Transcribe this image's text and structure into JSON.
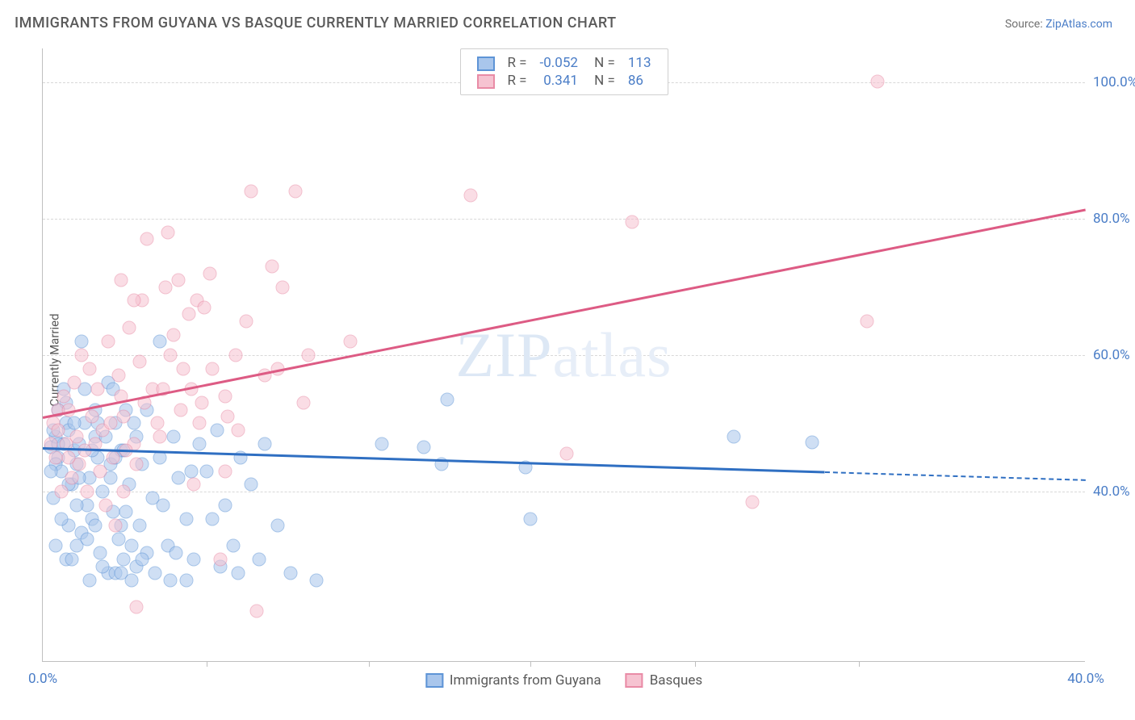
{
  "title": "IMMIGRANTS FROM GUYANA VS BASQUE CURRENTLY MARRIED CORRELATION CHART",
  "source_prefix": "Source: ",
  "source_link": "ZipAtlas.com",
  "ylabel": "Currently Married",
  "watermark": "ZIPatlas",
  "chart": {
    "type": "scatter",
    "xlim": [
      0,
      40
    ],
    "ylim": [
      15,
      105
    ],
    "x_ticks": [
      0,
      40
    ],
    "x_tick_labels": [
      "0.0%",
      "40.0%"
    ],
    "x_minor_ticks": [
      6.3,
      12.5,
      18.7,
      25,
      31.3
    ],
    "y_ticks": [
      40,
      60,
      80,
      100
    ],
    "y_tick_labels": [
      "40.0%",
      "60.0%",
      "80.0%",
      "100.0%"
    ],
    "grid_color": "#d8d8d8",
    "axis_color": "#bfbfbf",
    "background_color": "#ffffff",
    "marker_radius": 8.5,
    "marker_opacity": 0.55,
    "series": [
      {
        "name": "Immigrants from Guyana",
        "fill_color": "#a9c6ec",
        "stroke_color": "#5e94d6",
        "trend_color": "#2f6fc2",
        "R": "-0.052",
        "N": "113",
        "trend": {
          "x1": 0,
          "y1": 46.5,
          "x2": 30,
          "y2": 43.0,
          "ext_to_x": 40
        },
        "points": [
          [
            0.3,
            46.5
          ],
          [
            0.5,
            48
          ],
          [
            0.6,
            45
          ],
          [
            0.8,
            47
          ],
          [
            0.9,
            50
          ],
          [
            0.5,
            44
          ],
          [
            0.7,
            43
          ],
          [
            1.0,
            49
          ],
          [
            1.1,
            41
          ],
          [
            1.2,
            46
          ],
          [
            0.4,
            39
          ],
          [
            0.6,
            52
          ],
          [
            1.3,
            44
          ],
          [
            1.5,
            34
          ],
          [
            1.4,
            47
          ],
          [
            1.7,
            38
          ],
          [
            1.6,
            50
          ],
          [
            1.8,
            42
          ],
          [
            1.9,
            36
          ],
          [
            2.0,
            48
          ],
          [
            2.2,
            31
          ],
          [
            2.1,
            45
          ],
          [
            2.3,
            40
          ],
          [
            2.5,
            28
          ],
          [
            1.5,
            62
          ],
          [
            0.8,
            55
          ],
          [
            2.6,
            44
          ],
          [
            2.7,
            37
          ],
          [
            2.8,
            50
          ],
          [
            2.9,
            33
          ],
          [
            3.0,
            46
          ],
          [
            3.1,
            30
          ],
          [
            3.3,
            41
          ],
          [
            3.4,
            27
          ],
          [
            3.6,
            48
          ],
          [
            3.7,
            35
          ],
          [
            3.8,
            44
          ],
          [
            4.0,
            31
          ],
          [
            0.9,
            30
          ],
          [
            1.0,
            35
          ],
          [
            1.3,
            32
          ],
          [
            1.7,
            33
          ],
          [
            2.0,
            35
          ],
          [
            2.3,
            29
          ],
          [
            2.8,
            28
          ],
          [
            3.2,
            37
          ],
          [
            3.6,
            29
          ],
          [
            4.2,
            39
          ],
          [
            4.5,
            45
          ],
          [
            4.8,
            32
          ],
          [
            5.0,
            48
          ],
          [
            5.2,
            42
          ],
          [
            5.5,
            36
          ],
          [
            5.8,
            30
          ],
          [
            6.0,
            47
          ],
          [
            6.3,
            43
          ],
          [
            6.7,
            49
          ],
          [
            7.0,
            38
          ],
          [
            7.3,
            32
          ],
          [
            7.6,
            45
          ],
          [
            4.0,
            52
          ],
          [
            2.5,
            56
          ],
          [
            3.2,
            52
          ],
          [
            8.0,
            41
          ],
          [
            8.5,
            47
          ],
          [
            9.0,
            35
          ],
          [
            9.5,
            28
          ],
          [
            8.3,
            30
          ],
          [
            6.8,
            29
          ],
          [
            7.5,
            28
          ],
          [
            4.5,
            62
          ],
          [
            0.7,
            36
          ],
          [
            1.1,
            30
          ],
          [
            0.5,
            32
          ],
          [
            2.0,
            52
          ],
          [
            2.7,
            55
          ],
          [
            1.8,
            27
          ],
          [
            10.5,
            27
          ],
          [
            3.0,
            35
          ],
          [
            3.5,
            50
          ],
          [
            2.4,
            48
          ],
          [
            1.6,
            55
          ],
          [
            1.0,
            41
          ],
          [
            1.3,
            38
          ],
          [
            29.5,
            47.2
          ],
          [
            26.5,
            48.0
          ],
          [
            18.5,
            43.5
          ],
          [
            15.5,
            53.5
          ],
          [
            14.6,
            46.5
          ],
          [
            13.0,
            47
          ],
          [
            18.7,
            36
          ],
          [
            15.3,
            44
          ],
          [
            4.3,
            28
          ],
          [
            5.5,
            27
          ],
          [
            3.8,
            30
          ],
          [
            1.2,
            50
          ],
          [
            0.9,
            53
          ],
          [
            2.1,
            50
          ],
          [
            2.6,
            42
          ],
          [
            3.1,
            46
          ],
          [
            1.4,
            42
          ],
          [
            1.9,
            46
          ],
          [
            0.4,
            49
          ],
          [
            0.6,
            47
          ],
          [
            2.8,
            45
          ],
          [
            3.4,
            32
          ],
          [
            4.6,
            38
          ],
          [
            5.1,
            31
          ],
          [
            5.7,
            43
          ],
          [
            6.5,
            36
          ],
          [
            4.9,
            27
          ],
          [
            3.0,
            28
          ],
          [
            0.3,
            43
          ]
        ]
      },
      {
        "name": "Basques",
        "fill_color": "#f6c3d1",
        "stroke_color": "#e98ba6",
        "trend_color": "#dd5b84",
        "R": "0.341",
        "N": "86",
        "trend": {
          "x1": 0,
          "y1": 51.0,
          "x2": 40,
          "y2": 81.5
        },
        "points": [
          [
            0.4,
            50
          ],
          [
            0.6,
            52
          ],
          [
            0.8,
            54
          ],
          [
            1.0,
            52
          ],
          [
            1.2,
            56
          ],
          [
            1.3,
            48
          ],
          [
            1.5,
            60
          ],
          [
            1.6,
            46
          ],
          [
            1.8,
            58
          ],
          [
            1.9,
            51
          ],
          [
            2.1,
            55
          ],
          [
            2.3,
            49
          ],
          [
            2.5,
            62
          ],
          [
            2.7,
            45
          ],
          [
            2.9,
            57
          ],
          [
            3.1,
            51
          ],
          [
            3.3,
            64
          ],
          [
            3.5,
            47
          ],
          [
            3.7,
            59
          ],
          [
            3.9,
            53
          ],
          [
            4.2,
            55
          ],
          [
            4.5,
            48
          ],
          [
            4.9,
            60
          ],
          [
            5.3,
            52
          ],
          [
            5.6,
            66
          ],
          [
            6.0,
            50
          ],
          [
            6.5,
            58
          ],
          [
            7.0,
            54
          ],
          [
            0.5,
            45
          ],
          [
            0.9,
            47
          ],
          [
            1.4,
            44
          ],
          [
            2.0,
            47
          ],
          [
            2.6,
            50
          ],
          [
            3.2,
            46
          ],
          [
            3.8,
            68
          ],
          [
            4.4,
            50
          ],
          [
            5.0,
            63
          ],
          [
            5.7,
            55
          ],
          [
            6.4,
            72
          ],
          [
            7.1,
            51
          ],
          [
            7.8,
            65
          ],
          [
            8.5,
            57
          ],
          [
            9.2,
            70
          ],
          [
            10.0,
            53
          ],
          [
            4.0,
            77
          ],
          [
            3.0,
            71
          ],
          [
            4.8,
            78
          ],
          [
            8.0,
            84
          ],
          [
            16.4,
            83.5
          ],
          [
            11.8,
            62
          ],
          [
            8.8,
            73
          ],
          [
            9.7,
            84
          ],
          [
            9.0,
            58
          ],
          [
            7.4,
            60
          ],
          [
            20.1,
            45.5
          ],
          [
            22.6,
            79.5
          ],
          [
            27.2,
            38.5
          ],
          [
            32.0,
            100.2
          ],
          [
            31.6,
            65.0
          ],
          [
            7.0,
            43
          ],
          [
            3.5,
            68
          ],
          [
            5.8,
            41
          ],
          [
            3.6,
            23
          ],
          [
            8.2,
            22.5
          ],
          [
            6.8,
            30
          ],
          [
            2.4,
            38
          ],
          [
            3.1,
            40
          ],
          [
            10.2,
            60
          ],
          [
            5.2,
            71
          ],
          [
            5.9,
            68
          ],
          [
            4.7,
            70
          ],
          [
            6.2,
            67
          ],
          [
            1.1,
            42
          ],
          [
            1.7,
            40
          ],
          [
            0.7,
            40
          ],
          [
            2.8,
            35
          ],
          [
            3.6,
            44
          ],
          [
            0.3,
            47
          ],
          [
            0.6,
            49
          ],
          [
            1.0,
            45
          ],
          [
            2.2,
            43
          ],
          [
            3.0,
            54
          ],
          [
            4.6,
            55
          ],
          [
            6.1,
            53
          ],
          [
            7.5,
            49
          ],
          [
            5.4,
            58
          ]
        ]
      }
    ]
  }
}
